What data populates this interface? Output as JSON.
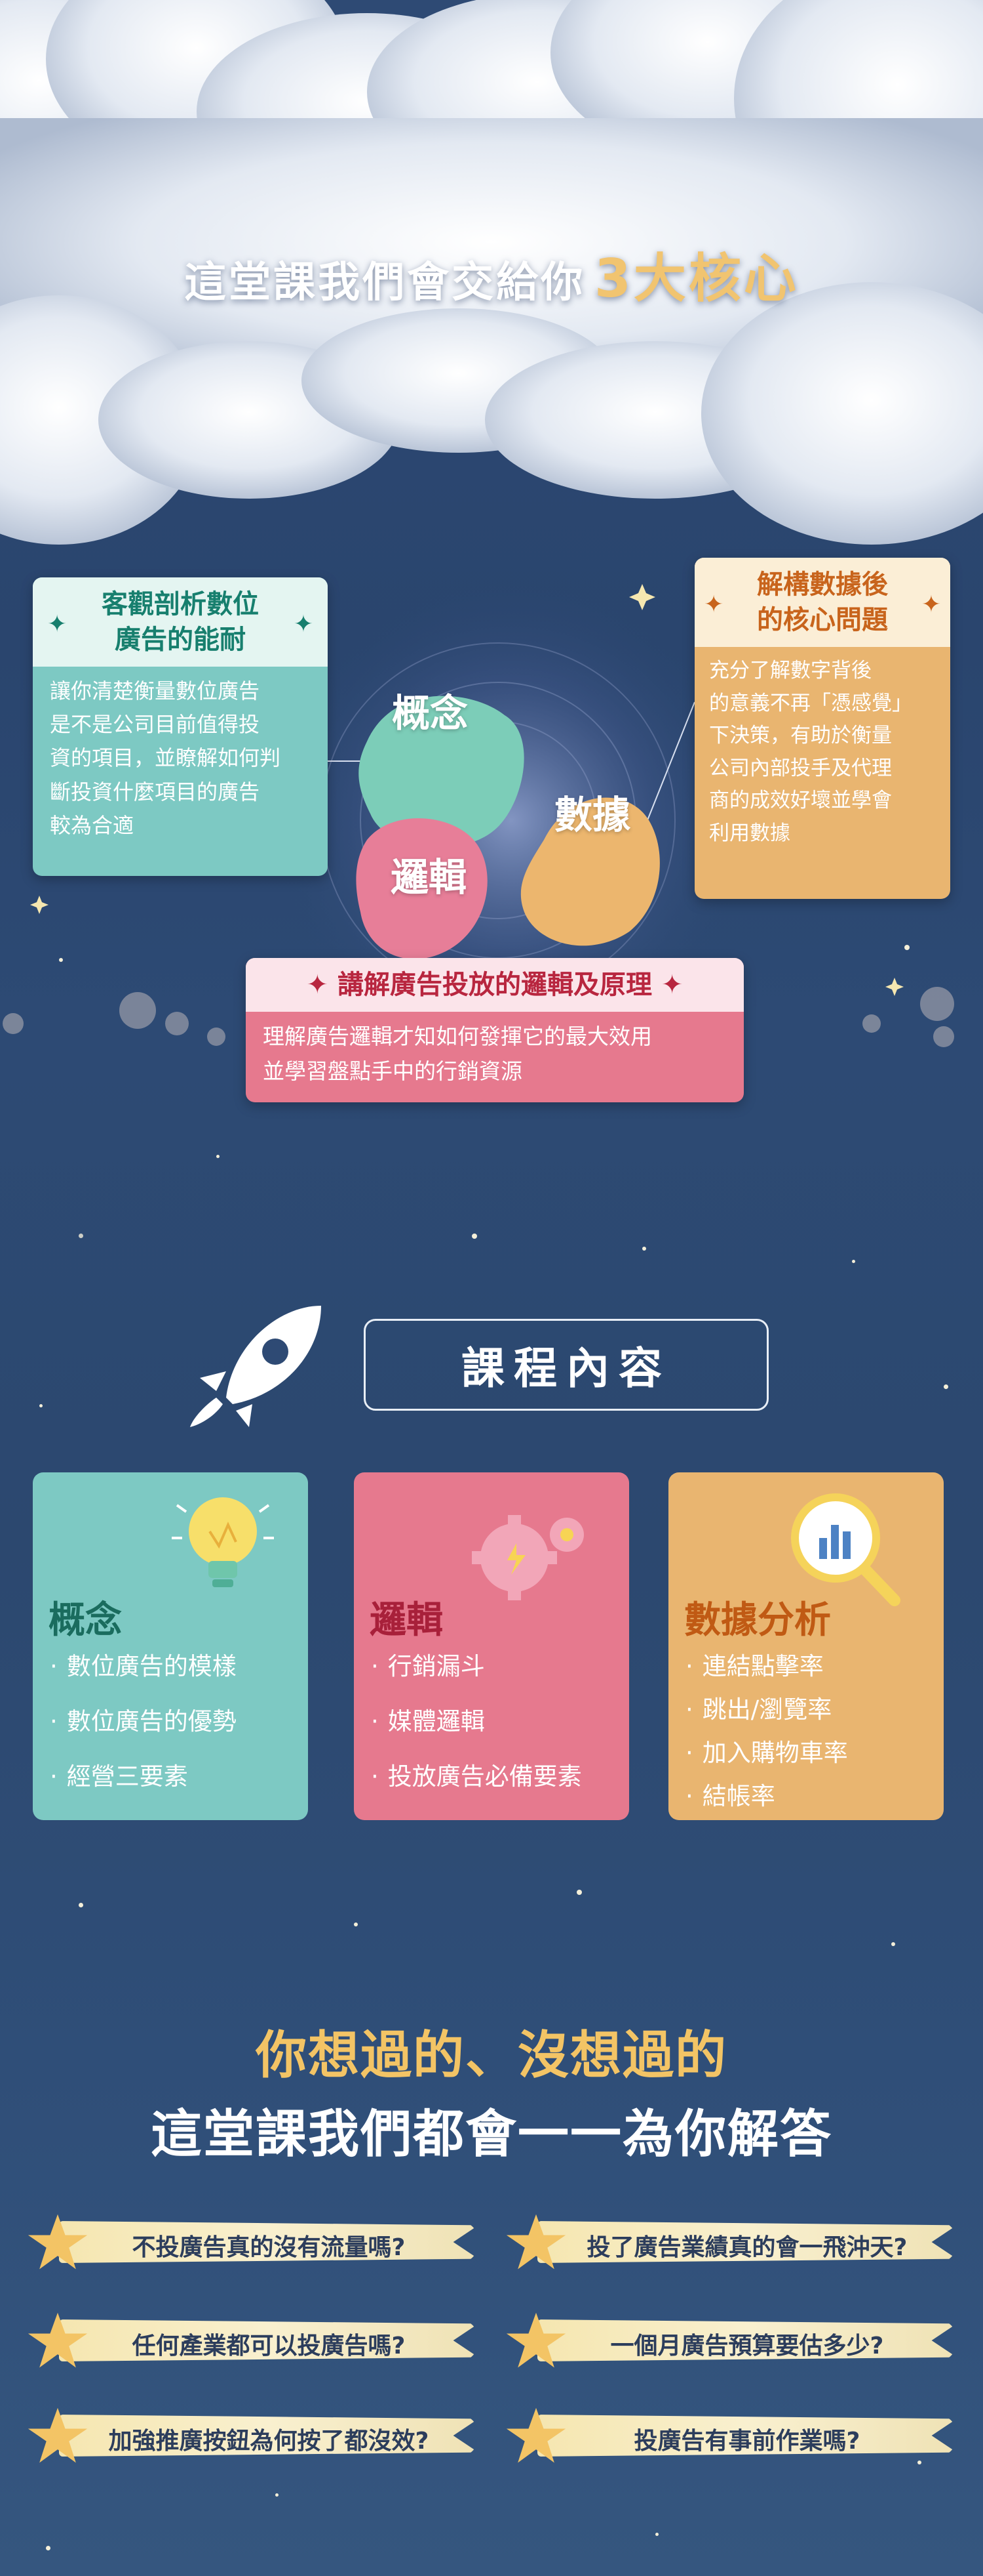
{
  "hero": {
    "title": "這堂課我們會交給你",
    "highlight": "3大核心"
  },
  "core": {
    "blobs": {
      "concept": "概念",
      "logic": "邏輯",
      "data": "數據"
    },
    "cards": {
      "teal": {
        "title_line1": "客觀剖析數位",
        "title_line2": "廣告的能耐",
        "body": [
          "讓你清楚衡量數位廣告",
          "是不是公司目前值得投",
          "資的項目，並瞭解如何判",
          "斷投資什麼項目的廣告",
          "較為合適"
        ]
      },
      "orange": {
        "title_line1": "解構數據後",
        "title_line2": "的核心問題",
        "body": [
          "充分了解數字背後",
          "的意義不再「憑感覺」",
          "下決策，有助於衡量",
          "公司內部投手及代理",
          "商的成效好壞並學會",
          "利用數據"
        ]
      },
      "pink": {
        "title": "講解廣告投放的邏輯及原理",
        "body": [
          "理解廣告邏輯才知如何發揮它的最大效用",
          "並學習盤點手中的行銷資源"
        ]
      }
    }
  },
  "course": {
    "heading": "課程內容",
    "cards": [
      {
        "title": "概念",
        "items": [
          "數位廣告的模樣",
          "數位廣告的優勢",
          "經營三要素"
        ]
      },
      {
        "title": "邏輯",
        "items": [
          "行銷漏斗",
          "媒體邏輯",
          "投放廣告必備要素"
        ]
      },
      {
        "title": "數據分析",
        "items": [
          "連結點擊率",
          "跳出/瀏覽率",
          "加入購物車率",
          "結帳率"
        ]
      }
    ]
  },
  "questions": {
    "title1": "你想過的、沒想過的",
    "title2": "這堂課我們都會一一為你解答",
    "items": [
      "不投廣告真的沒有流量嗎?",
      "投了廣告業績真的會一飛沖天?",
      "任何產業都可以投廣告嗎?",
      "一個月廣告預算要估多少?",
      "加強推廣按鈕為何按了都沒效?",
      "投廣告有事前作業嗎?"
    ]
  },
  "colors": {
    "background": "#2e4a74",
    "teal": "#7dc9c3",
    "teal_dark": "#177f6e",
    "orange": "#e9b570",
    "orange_dark": "#c8641c",
    "pink": "#e6798e",
    "pink_dark": "#b8263f",
    "gold": "#f1c470"
  }
}
